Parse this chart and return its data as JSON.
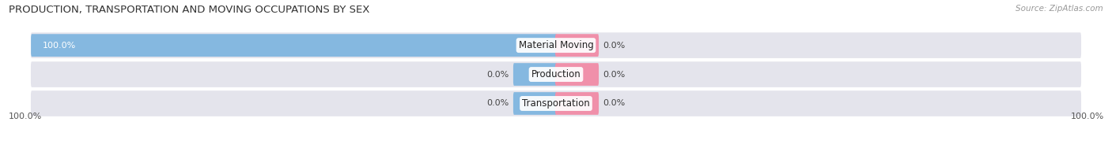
{
  "title": "PRODUCTION, TRANSPORTATION AND MOVING OCCUPATIONS BY SEX",
  "source": "Source: ZipAtlas.com",
  "categories": [
    "Material Moving",
    "Production",
    "Transportation"
  ],
  "male_values": [
    100.0,
    0.0,
    0.0
  ],
  "female_values": [
    0.0,
    0.0,
    0.0
  ],
  "male_color": "#85b8e0",
  "female_color": "#f090aa",
  "bar_bg_color": "#e4e4ec",
  "min_segment_pct": 8.0,
  "bar_height": 0.52,
  "figsize": [
    14.06,
    1.97
  ],
  "dpi": 100,
  "title_fontsize": 9.5,
  "source_fontsize": 7.5,
  "tick_fontsize": 8,
  "label_fontsize": 8,
  "cat_fontsize": 8.5,
  "legend_fontsize": 8.5
}
